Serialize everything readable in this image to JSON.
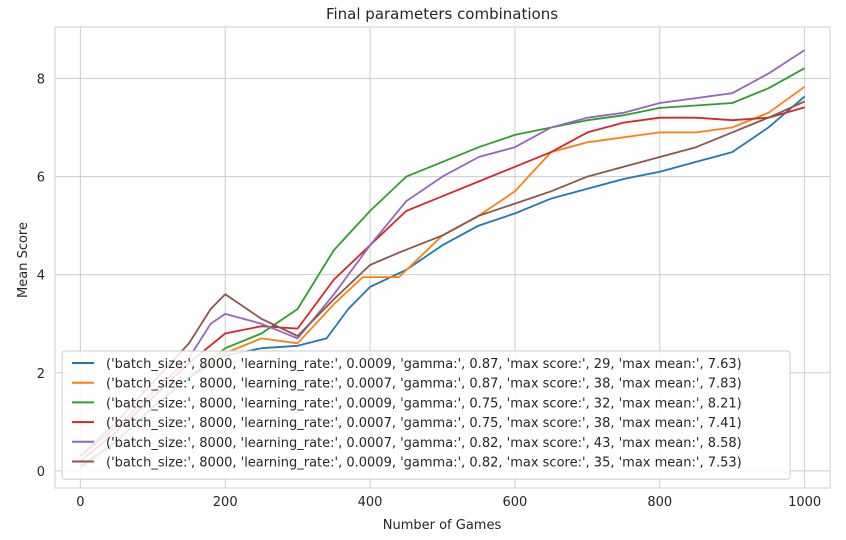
{
  "chart_data": {
    "type": "line",
    "title": "Final parameters combinations",
    "xlabel": "Number of Games",
    "ylabel": "Mean Score",
    "xlim": [
      -35,
      1035
    ],
    "ylim": [
      -0.35,
      9.05
    ],
    "xticks": [
      0,
      200,
      400,
      600,
      800,
      1000
    ],
    "yticks": [
      0,
      2,
      4,
      6,
      8
    ],
    "grid": true,
    "legend_position": "lower-left",
    "series": [
      {
        "name": "('batch_size:', 8000, 'learning_rate:', 0.0009, 'gamma:', 0.87, 'max score:', 29, 'max mean:', 7.63)",
        "color": "#1f77b4",
        "points": [
          [
            0,
            0.1
          ],
          [
            50,
            0.6
          ],
          [
            100,
            1.3
          ],
          [
            150,
            1.9
          ],
          [
            200,
            2.35
          ],
          [
            250,
            2.5
          ],
          [
            300,
            2.55
          ],
          [
            340,
            2.7
          ],
          [
            370,
            3.3
          ],
          [
            400,
            3.75
          ],
          [
            450,
            4.1
          ],
          [
            500,
            4.6
          ],
          [
            550,
            5.0
          ],
          [
            600,
            5.25
          ],
          [
            650,
            5.55
          ],
          [
            700,
            5.75
          ],
          [
            750,
            5.95
          ],
          [
            800,
            6.1
          ],
          [
            850,
            6.3
          ],
          [
            900,
            6.5
          ],
          [
            950,
            7.0
          ],
          [
            1000,
            7.63
          ]
        ]
      },
      {
        "name": "('batch_size:', 8000, 'learning_rate:', 0.0007, 'gamma:', 0.87, 'max score:', 38, 'max mean:', 7.83)",
        "color": "#ff7f0e",
        "points": [
          [
            0,
            0.05
          ],
          [
            50,
            0.6
          ],
          [
            100,
            1.3
          ],
          [
            150,
            1.9
          ],
          [
            200,
            2.4
          ],
          [
            250,
            2.7
          ],
          [
            300,
            2.6
          ],
          [
            350,
            3.4
          ],
          [
            390,
            3.95
          ],
          [
            440,
            3.95
          ],
          [
            500,
            4.8
          ],
          [
            550,
            5.2
          ],
          [
            600,
            5.7
          ],
          [
            650,
            6.5
          ],
          [
            700,
            6.7
          ],
          [
            750,
            6.8
          ],
          [
            800,
            6.9
          ],
          [
            850,
            6.9
          ],
          [
            900,
            7.0
          ],
          [
            950,
            7.3
          ],
          [
            1000,
            7.83
          ]
        ]
      },
      {
        "name": "('batch_size:', 8000, 'learning_rate:', 0.0009, 'gamma:', 0.75, 'max score:', 32, 'max mean:', 8.21)",
        "color": "#2ca02c",
        "points": [
          [
            0,
            0.1
          ],
          [
            50,
            0.6
          ],
          [
            100,
            1.3
          ],
          [
            150,
            1.9
          ],
          [
            200,
            2.5
          ],
          [
            250,
            2.8
          ],
          [
            300,
            3.3
          ],
          [
            350,
            4.5
          ],
          [
            400,
            5.3
          ],
          [
            450,
            6.0
          ],
          [
            500,
            6.3
          ],
          [
            550,
            6.6
          ],
          [
            600,
            6.85
          ],
          [
            650,
            7.0
          ],
          [
            700,
            7.15
          ],
          [
            750,
            7.25
          ],
          [
            800,
            7.4
          ],
          [
            850,
            7.45
          ],
          [
            900,
            7.5
          ],
          [
            950,
            7.8
          ],
          [
            1000,
            8.21
          ]
        ]
      },
      {
        "name": "('batch_size:', 8000, 'learning_rate:', 0.0007, 'gamma:', 0.75, 'max score:', 38, 'max mean:', 7.41)",
        "color": "#d62728",
        "points": [
          [
            0,
            0.2
          ],
          [
            50,
            0.8
          ],
          [
            100,
            1.5
          ],
          [
            150,
            2.2
          ],
          [
            200,
            2.8
          ],
          [
            250,
            2.95
          ],
          [
            300,
            2.9
          ],
          [
            350,
            3.9
          ],
          [
            400,
            4.6
          ],
          [
            450,
            5.3
          ],
          [
            500,
            5.6
          ],
          [
            550,
            5.9
          ],
          [
            600,
            6.2
          ],
          [
            650,
            6.5
          ],
          [
            700,
            6.9
          ],
          [
            750,
            7.1
          ],
          [
            800,
            7.2
          ],
          [
            850,
            7.2
          ],
          [
            900,
            7.15
          ],
          [
            950,
            7.2
          ],
          [
            1000,
            7.41
          ]
        ]
      },
      {
        "name": "('batch_size:', 8000, 'learning_rate:', 0.0007, 'gamma:', 0.82, 'max score:', 43, 'max mean:', 8.58)",
        "color": "#9467bd",
        "points": [
          [
            0,
            0.3
          ],
          [
            50,
            0.9
          ],
          [
            100,
            1.6
          ],
          [
            150,
            2.3
          ],
          [
            180,
            3.0
          ],
          [
            200,
            3.2
          ],
          [
            250,
            3.0
          ],
          [
            300,
            2.7
          ],
          [
            350,
            3.6
          ],
          [
            400,
            4.6
          ],
          [
            450,
            5.5
          ],
          [
            500,
            6.0
          ],
          [
            550,
            6.4
          ],
          [
            600,
            6.6
          ],
          [
            650,
            7.0
          ],
          [
            700,
            7.2
          ],
          [
            750,
            7.3
          ],
          [
            800,
            7.5
          ],
          [
            850,
            7.6
          ],
          [
            900,
            7.7
          ],
          [
            950,
            8.1
          ],
          [
            1000,
            8.58
          ]
        ]
      },
      {
        "name": "('batch_size:', 8000, 'learning_rate:', 0.0009, 'gamma:', 0.82, 'max score:', 35, 'max mean:', 7.53)",
        "color": "#8c564b",
        "points": [
          [
            0,
            0.3
          ],
          [
            50,
            1.0
          ],
          [
            100,
            1.8
          ],
          [
            150,
            2.6
          ],
          [
            180,
            3.3
          ],
          [
            200,
            3.6
          ],
          [
            250,
            3.1
          ],
          [
            300,
            2.75
          ],
          [
            350,
            3.5
          ],
          [
            400,
            4.2
          ],
          [
            440,
            4.45
          ],
          [
            500,
            4.8
          ],
          [
            550,
            5.2
          ],
          [
            600,
            5.45
          ],
          [
            650,
            5.7
          ],
          [
            700,
            6.0
          ],
          [
            750,
            6.2
          ],
          [
            800,
            6.4
          ],
          [
            850,
            6.6
          ],
          [
            900,
            6.9
          ],
          [
            950,
            7.2
          ],
          [
            1000,
            7.53
          ]
        ]
      }
    ]
  }
}
